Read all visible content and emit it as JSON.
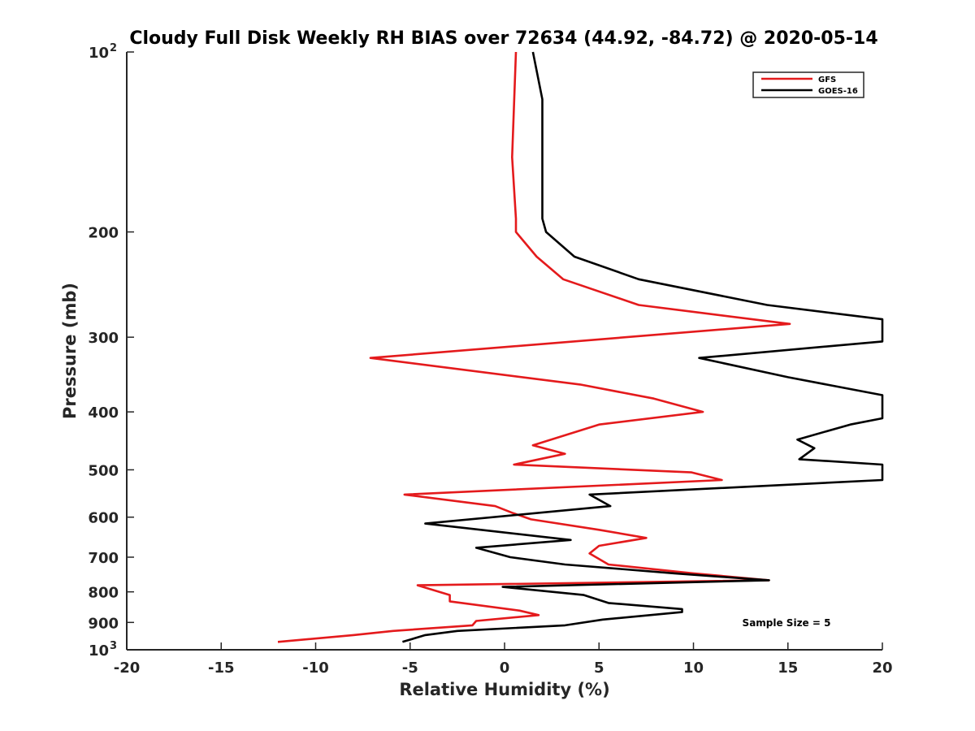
{
  "chart_data": {
    "type": "line",
    "title": "Cloudy Full Disk Weekly RH BIAS over 72634 (44.92, -84.72) @ 2020-05-14",
    "xlabel": "Relative Humidity (%)",
    "ylabel": "Pressure (mb)",
    "xlim": [
      -20,
      20
    ],
    "ylim": [
      100,
      1000
    ],
    "y_scale": "log",
    "y_reversed": true,
    "grid": false,
    "legend_position": "top-right",
    "x_ticks": [
      "-20",
      "-15",
      "-10",
      "-5",
      "0",
      "5",
      "10",
      "15",
      "20"
    ],
    "y_ticks": [
      {
        "value": 100,
        "base": "10",
        "exp": "2"
      },
      {
        "value": 200,
        "label": "200"
      },
      {
        "value": 300,
        "label": "300"
      },
      {
        "value": 400,
        "label": "400"
      },
      {
        "value": 500,
        "label": "500"
      },
      {
        "value": 600,
        "label": "600"
      },
      {
        "value": 700,
        "label": "700"
      },
      {
        "value": 800,
        "label": "800"
      },
      {
        "value": 900,
        "label": "900"
      },
      {
        "value": 1000,
        "base": "10",
        "exp": "3"
      }
    ],
    "annotation": "Sample Size = 5",
    "series": [
      {
        "name": "GFS",
        "color": "#e41a1c",
        "points": [
          [
            0.6,
            100
          ],
          [
            0.4,
            150
          ],
          [
            0.6,
            190
          ],
          [
            0.6,
            200
          ],
          [
            1.7,
            220
          ],
          [
            3.1,
            240
          ],
          [
            7.1,
            265
          ],
          [
            15.1,
            285
          ],
          [
            -7.1,
            325
          ],
          [
            4.0,
            360
          ],
          [
            7.9,
            380
          ],
          [
            10.5,
            400
          ],
          [
            5.0,
            420
          ],
          [
            1.5,
            455
          ],
          [
            3.2,
            470
          ],
          [
            0.5,
            490
          ],
          [
            9.9,
            505
          ],
          [
            11.5,
            520
          ],
          [
            -5.3,
            550
          ],
          [
            -0.5,
            575
          ],
          [
            0.4,
            590
          ],
          [
            1.4,
            605
          ],
          [
            5.0,
            630
          ],
          [
            7.5,
            650
          ],
          [
            5.0,
            670
          ],
          [
            4.5,
            690
          ],
          [
            5.5,
            720
          ],
          [
            10.0,
            745
          ],
          [
            14.0,
            765
          ],
          [
            -4.6,
            780
          ],
          [
            -2.9,
            810
          ],
          [
            -2.9,
            830
          ],
          [
            0.8,
            860
          ],
          [
            1.8,
            875
          ],
          [
            -1.5,
            895
          ],
          [
            -1.7,
            910
          ],
          [
            -5.9,
            930
          ],
          [
            -8.0,
            945
          ],
          [
            -12.0,
            970
          ]
        ]
      },
      {
        "name": "GOES-16",
        "color": "#000000",
        "points": [
          [
            1.5,
            100
          ],
          [
            2.0,
            120
          ],
          [
            2.0,
            190
          ],
          [
            2.2,
            200
          ],
          [
            3.7,
            220
          ],
          [
            7.1,
            240
          ],
          [
            13.9,
            265
          ],
          [
            20.0,
            280
          ],
          [
            20.0,
            305
          ],
          [
            10.3,
            325
          ],
          [
            15.0,
            350
          ],
          [
            20.0,
            375
          ],
          [
            20.0,
            410
          ],
          [
            18.3,
            420
          ],
          [
            15.5,
            445
          ],
          [
            16.4,
            460
          ],
          [
            15.6,
            480
          ],
          [
            20.0,
            490
          ],
          [
            20.0,
            520
          ],
          [
            4.5,
            550
          ],
          [
            5.6,
            575
          ],
          [
            -4.2,
            615
          ],
          [
            3.5,
            655
          ],
          [
            -1.5,
            675
          ],
          [
            0.3,
            700
          ],
          [
            3.2,
            720
          ],
          [
            9.0,
            745
          ],
          [
            14.0,
            765
          ],
          [
            -0.1,
            785
          ],
          [
            4.2,
            810
          ],
          [
            5.5,
            835
          ],
          [
            9.4,
            855
          ],
          [
            9.4,
            865
          ],
          [
            5.2,
            890
          ],
          [
            3.2,
            910
          ],
          [
            -2.5,
            930
          ],
          [
            -4.2,
            945
          ],
          [
            -5.4,
            970
          ]
        ]
      }
    ]
  }
}
